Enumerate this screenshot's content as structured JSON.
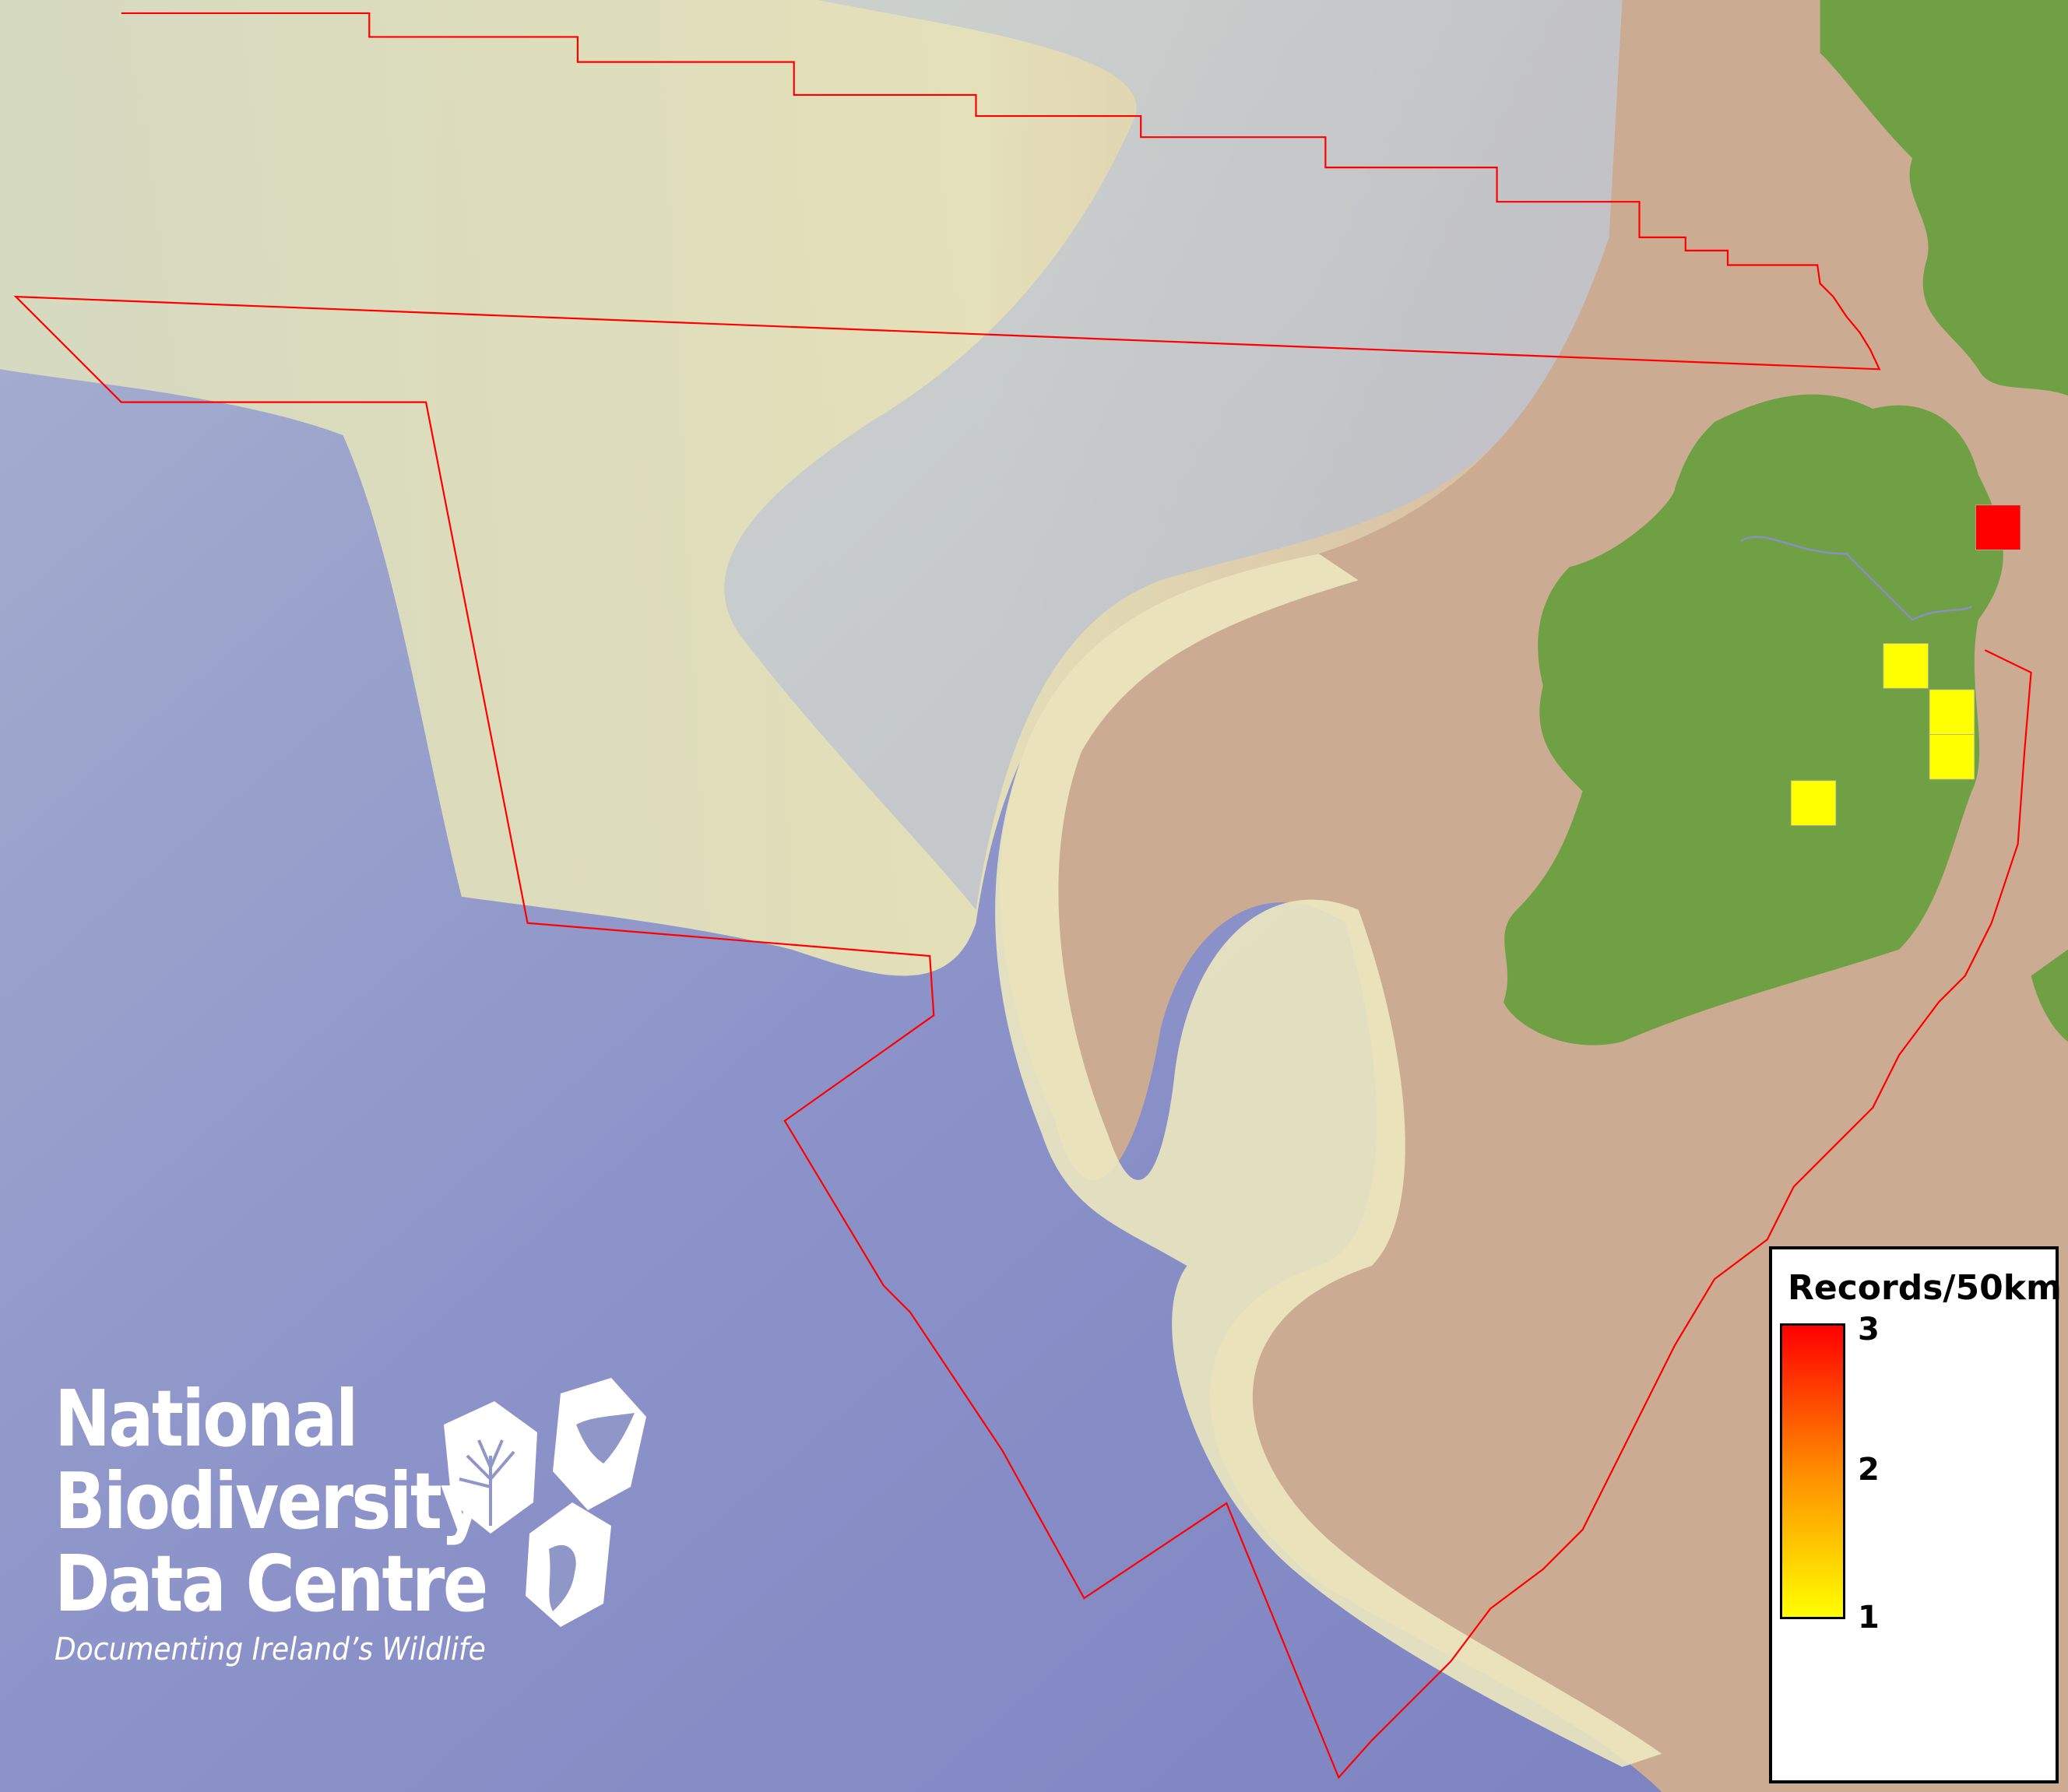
{
  "map": {
    "colors": {
      "deep_ocean": "#7f86c4",
      "shelf_slope": "#e6e6c4",
      "continental_shelf": "#ccab93",
      "land": "#6fa144",
      "boundary": "#ff0000"
    },
    "grid_cells": [
      {
        "id": "north-east",
        "records": 3,
        "color": "#ff0000"
      },
      {
        "id": "east-1",
        "records": 1,
        "color": "#ffff00"
      },
      {
        "id": "east-2",
        "records": 1,
        "color": "#ffff00"
      },
      {
        "id": "east-3",
        "records": 1,
        "color": "#ffff00"
      },
      {
        "id": "midlands",
        "records": 1,
        "color": "#ffff00"
      }
    ]
  },
  "legend": {
    "title": "Records/50km",
    "ticks": [
      "3",
      "2",
      "1"
    ],
    "min": 1,
    "max": 3,
    "color_low": "#ffff00",
    "color_mid": "#ff8c00",
    "color_high": "#ff0000"
  },
  "logo": {
    "line1": "National",
    "line2": "Biodiversity",
    "line3": "Data Centre",
    "tagline": "Documenting Ireland’s Wildlife",
    "icons": [
      "tree-icon",
      "butterfly-icon",
      "seahorse-icon"
    ]
  }
}
